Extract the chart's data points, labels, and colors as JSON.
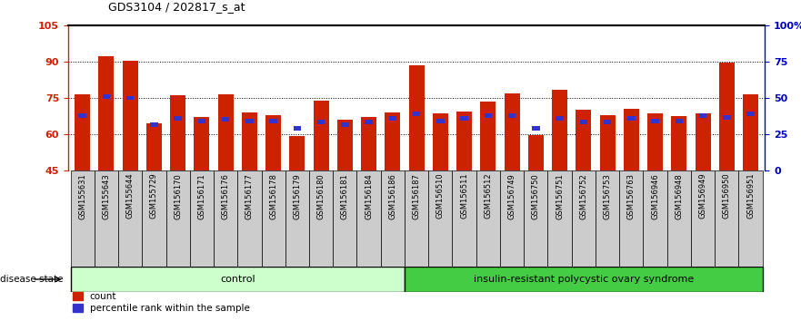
{
  "title": "GDS3104 / 202817_s_at",
  "samples": [
    "GSM155631",
    "GSM155643",
    "GSM155644",
    "GSM155729",
    "GSM156170",
    "GSM156171",
    "GSM156176",
    "GSM156177",
    "GSM156178",
    "GSM156179",
    "GSM156180",
    "GSM156181",
    "GSM156184",
    "GSM156186",
    "GSM156187",
    "GSM156510",
    "GSM156511",
    "GSM156512",
    "GSM156749",
    "GSM156750",
    "GSM156751",
    "GSM156752",
    "GSM156753",
    "GSM156763",
    "GSM156946",
    "GSM156948",
    "GSM156949",
    "GSM156950",
    "GSM156951"
  ],
  "red_values": [
    76.5,
    92.5,
    90.5,
    64.5,
    76.0,
    67.0,
    76.5,
    69.0,
    68.0,
    59.0,
    74.0,
    66.0,
    67.0,
    69.0,
    88.5,
    68.5,
    69.5,
    73.5,
    77.0,
    59.5,
    78.5,
    70.0,
    68.0,
    70.5,
    68.5,
    67.5,
    68.5,
    89.5,
    76.5
  ],
  "blue_values": [
    67.5,
    75.5,
    75.0,
    64.0,
    66.5,
    65.5,
    66.0,
    65.5,
    65.5,
    62.5,
    65.0,
    64.0,
    65.0,
    66.5,
    68.5,
    65.5,
    66.5,
    67.5,
    67.5,
    62.5,
    66.5,
    65.0,
    65.0,
    66.5,
    65.5,
    65.5,
    67.5,
    67.0,
    68.5
  ],
  "control_count": 14,
  "disease_count": 15,
  "ymin": 45,
  "ymax": 105,
  "yticks": [
    45,
    60,
    75,
    90,
    105
  ],
  "ytick_labels": [
    "45",
    "60",
    "75",
    "90",
    "105"
  ],
  "grid_lines": [
    60,
    75,
    90
  ],
  "right_yticks": [
    0,
    25,
    50,
    75,
    100
  ],
  "right_ytick_labels": [
    "0",
    "25",
    "50",
    "75",
    "100%"
  ],
  "bar_color": "#CC2200",
  "blue_color": "#3333CC",
  "control_bg": "#CCFFCC",
  "disease_bg": "#44CC44",
  "tick_bg": "#CCCCCC",
  "left_tick_color": "#CC2200",
  "right_tick_color": "#0000BB",
  "control_label": "control",
  "disease_label": "insulin-resistant polycystic ovary syndrome",
  "disease_state_label": "disease state",
  "legend_count": "count",
  "legend_percentile": "percentile rank within the sample"
}
